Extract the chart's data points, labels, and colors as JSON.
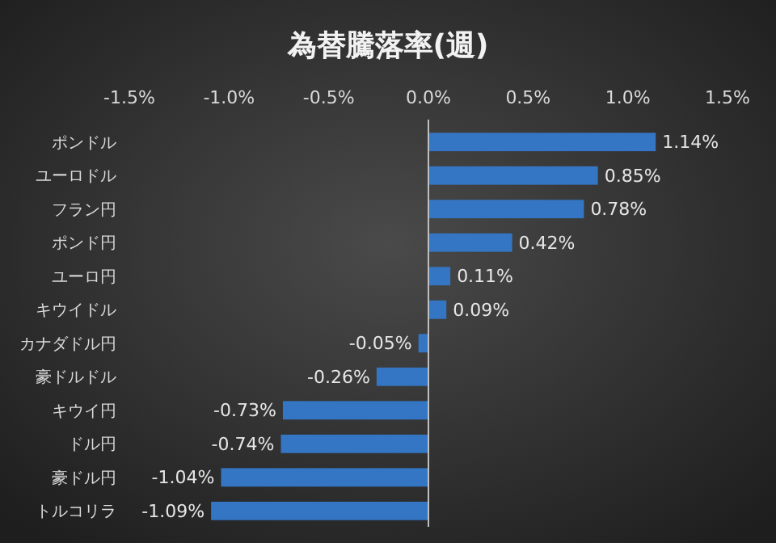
{
  "chart_data": {
    "type": "bar",
    "orientation": "horizontal",
    "title": "為替騰落率(週)",
    "categories": [
      "ポンドル",
      "ユーロドル",
      "フラン円",
      "ポンド円",
      "ユーロ円",
      "キウイドル",
      "カナダドル円",
      "豪ドルドル",
      "キウイ円",
      "ドル円",
      "豪ドル円",
      "トルコリラ"
    ],
    "values": [
      1.14,
      0.85,
      0.78,
      0.42,
      0.11,
      0.09,
      -0.05,
      -0.26,
      -0.73,
      -0.74,
      -1.04,
      -1.09
    ],
    "value_labels": [
      "1.14%",
      "0.85%",
      "0.78%",
      "0.42%",
      "0.11%",
      "0.09%",
      "-0.05%",
      "-0.26%",
      "-0.73%",
      "-0.74%",
      "-1.04%",
      "-1.09%"
    ],
    "color": "#3476c4",
    "xlim": [
      -1.5,
      1.5
    ],
    "xticks": [
      {
        "value": -1.5,
        "label": "-1.5%"
      },
      {
        "value": -1,
        "label": "-1.0%"
      },
      {
        "value": -0.5,
        "label": "-0.5%"
      },
      {
        "value": 0,
        "label": "0.0%"
      },
      {
        "value": 0.5,
        "label": "0.5%"
      },
      {
        "value": 1,
        "label": "1.0%"
      },
      {
        "value": 1.5,
        "label": "1.5%"
      }
    ]
  }
}
